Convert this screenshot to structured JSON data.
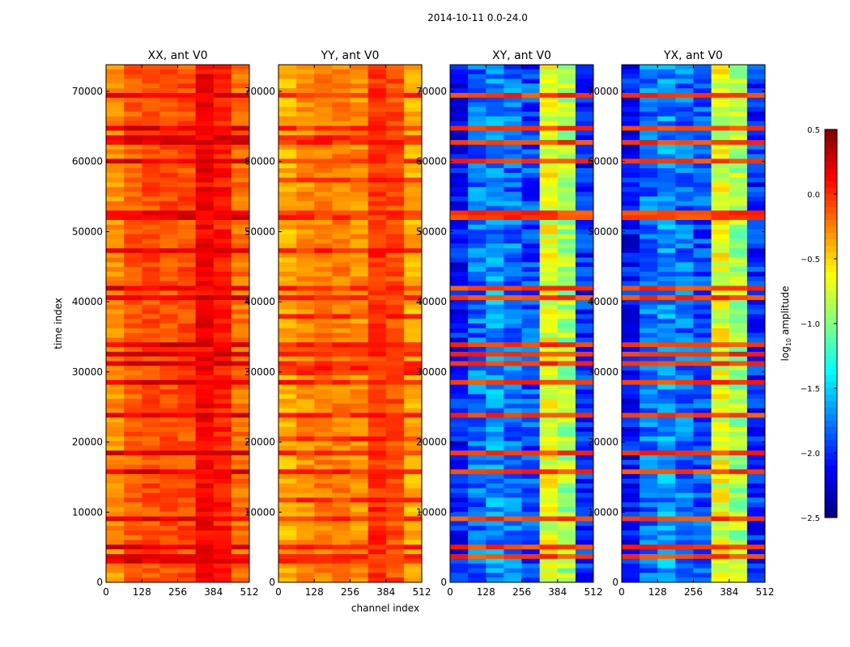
{
  "chart_data": {
    "type": "heatmap",
    "suptitle": "2014-10-11 0.0-24.0",
    "xlabel": "channel index",
    "ylabel": "time index",
    "xlim": [
      0,
      512
    ],
    "ylim": [
      0,
      73800
    ],
    "xticks": [
      "0",
      "128",
      "256",
      "384",
      "512"
    ],
    "xtick_values": [
      0,
      128,
      256,
      384,
      512
    ],
    "yticks": [
      "0",
      "10000",
      "20000",
      "30000",
      "40000",
      "50000",
      "60000",
      "70000"
    ],
    "ytick_values": [
      0,
      10000,
      20000,
      30000,
      40000,
      50000,
      60000,
      70000
    ],
    "colorbar": {
      "label_prefix": "log",
      "label_sub": "10",
      "label_suffix": " amplitude",
      "range": [
        -2.5,
        0.5
      ],
      "ticks": [
        "0.5",
        "0.0",
        "−0.5",
        "−1.0",
        "−1.5",
        "−2.0",
        "−2.5"
      ],
      "tick_values": [
        0.5,
        0.0,
        -0.5,
        -1.0,
        -1.5,
        -2.0,
        -2.5
      ],
      "colormap": "jet"
    },
    "panels": [
      {
        "title": "XX, ant V0",
        "channel_profile_log10": [
          -0.3,
          -0.15,
          -0.1,
          -0.1,
          -0.1,
          0.15,
          0.05,
          -0.2
        ],
        "stripe_value_log10": 0.2,
        "stripe_fraction": 0.25
      },
      {
        "title": "YY, ant V0",
        "channel_profile_log10": [
          -0.4,
          -0.3,
          -0.25,
          -0.25,
          -0.3,
          0.0,
          -0.1,
          -0.4
        ],
        "stripe_value_log10": 0.0,
        "stripe_fraction": 0.3
      },
      {
        "title": "XY, ant V0",
        "channel_profile_log10": [
          -2.1,
          -1.8,
          -1.7,
          -1.8,
          -1.9,
          -0.7,
          -0.9,
          -2.0
        ],
        "stripe_value_log10": -0.05,
        "stripe_fraction": 0.22
      },
      {
        "title": "YX, ant V0",
        "channel_profile_log10": [
          -2.1,
          -1.8,
          -1.7,
          -1.8,
          -1.9,
          -0.7,
          -0.9,
          -2.0
        ],
        "stripe_value_log10": -0.05,
        "stripe_fraction": 0.22
      }
    ]
  }
}
